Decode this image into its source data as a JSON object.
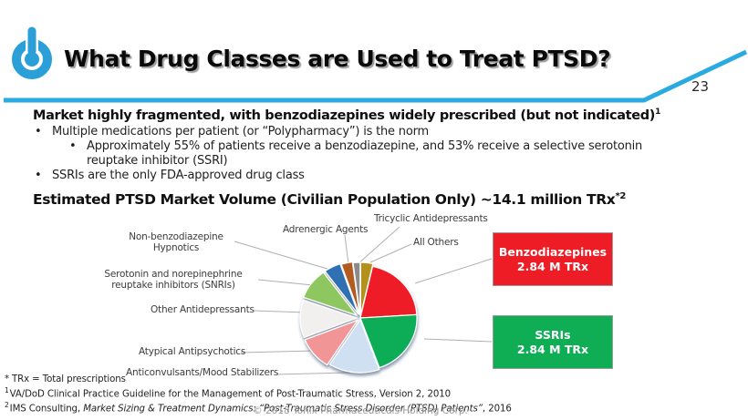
{
  "slide": {
    "page_number": "23",
    "title": "What Drug Classes are Used to Treat PTSD?",
    "copyright": "© 2018 Tonix Pharmaceuticals Holding Corp.",
    "accent_color": "#29abe2",
    "logo_color": "#2a9fd8"
  },
  "content": {
    "heading": "Market highly fragmented, with benzodiazepines widely prescribed (but not indicated)",
    "heading_sup": "1",
    "bullet_char": "•",
    "bullets": [
      {
        "level": 1,
        "lines": [
          "Multiple medications per patient (or “Polypharmacy”) is the norm"
        ]
      },
      {
        "level": 2,
        "lines": [
          "Approximately 55% of patients receive a benzodiazepine, and 53% receive a selective serotonin",
          "reuptake inhibitor (SSRI)"
        ]
      },
      {
        "level": 1,
        "lines": [
          "SSRIs are the only FDA-approved drug class"
        ]
      }
    ],
    "subtitle": "Estimated PTSD Market Volume (Civilian Population Only) ~14.1 million TRx",
    "subtitle_sup": "*2"
  },
  "chart_data": {
    "type": "pie",
    "title": "Estimated PTSD Market Volume (Civilian Population Only) ~14.1 million TRx*2",
    "total_label": "~14.1 million TRx",
    "legend_position": "outside-labels",
    "slices": [
      {
        "label": "All Others",
        "percent": 3.5,
        "color": "#b3921f",
        "explode": 3
      },
      {
        "label": "Benzodiazepines",
        "percent": 20.5,
        "m_trx": 2.84,
        "color": "#ee1c25",
        "explode": 0
      },
      {
        "label": "SSRIs",
        "percent": 20.5,
        "m_trx": 2.84,
        "color": "#10ac56",
        "explode": 0
      },
      {
        "label": "Anticonvulsants/Mood Stabilizers",
        "percent": 14.5,
        "color": "#cfe0f2",
        "explode": 2
      },
      {
        "label": "Atypical Antipsychotics",
        "percent": 10.0,
        "color": "#f29597",
        "explode": 4
      },
      {
        "label": "Other Antidepressants",
        "percent": 11.5,
        "color": "#f2f0ee",
        "explode": 4
      },
      {
        "label": "Serotonin and norepinephrine reuptake inhibitors (SNRIs)",
        "percent": 9.5,
        "color": "#8ec75f",
        "explode": 5
      },
      {
        "label": "Non-benzodiazepine Hypnotics",
        "percent": 4.8,
        "color": "#2d6fb2",
        "explode": 5
      },
      {
        "label": "Adrenergic Agents",
        "percent": 3.2,
        "color": "#b25b22",
        "explode": 4
      },
      {
        "label": "Tricyclic Antidepressants",
        "percent": 2.0,
        "color": "#8b8b8b",
        "explode": 3
      }
    ],
    "pie_labels": {
      "tricyclic": {
        "lines": [
          "Tricyclic Antidepressants"
        ]
      },
      "adrenergic": {
        "lines": [
          "Adrenergic Agents"
        ]
      },
      "all_others": {
        "lines": [
          "All Others"
        ]
      },
      "non_benzo": {
        "lines": [
          "Non-benzodiazepine",
          "Hypnotics"
        ]
      },
      "snri": {
        "lines": [
          "Serotonin and norepinephrine",
          "reuptake inhibitors (SNRIs)"
        ]
      },
      "other_ad": {
        "lines": [
          "Other Antidepressants"
        ]
      },
      "atypical": {
        "lines": [
          "Atypical Antipsychotics"
        ]
      },
      "anticonv": {
        "lines": [
          "Anticonvulsants/Mood Stabilizers"
        ]
      }
    },
    "callouts": [
      {
        "name": "Benzodiazepines",
        "lines": [
          "Benzodiazepines",
          "2.84 M TRx"
        ],
        "value_m_trx": 2.84,
        "color": "#ee1c25"
      },
      {
        "name": "SSRIs",
        "lines": [
          "SSRIs",
          "2.84 M TRx"
        ],
        "value_m_trx": 2.84,
        "color": "#0fae55"
      }
    ]
  },
  "footnotes": {
    "asterisk": {
      "marker": "*",
      "text": "TRx = Total prescriptions"
    },
    "fn1": {
      "marker": "1",
      "text": "VA/DoD Clinical Practice Guideline for the Management of Post-Traumatic Stress, Version 2, 2010"
    },
    "fn2": {
      "marker": "2",
      "prefix": "IMS Consulting, ",
      "italic": "Market Sizing & Treatment Dynamics: “Post-Traumatic Stress Disorder (PTSD) Patients”",
      "suffix": ", 2016"
    }
  }
}
